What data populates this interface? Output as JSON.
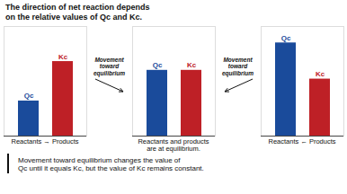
{
  "title": "The direction of net reaction depends\non the relative values of Qc and Kc.",
  "caption": "Movement toward equilibrium changes the value of\nQc until it equals Kc, but the value of Kc remains constant.",
  "chart_data": [
    {
      "type": "bar",
      "categories": [
        "Qc",
        "Kc"
      ],
      "values": [
        0.32,
        0.68
      ],
      "colors": [
        "#1a4b9b",
        "#be2026"
      ],
      "xlabel": "Reactants → Products",
      "ylim": [
        0,
        1.0
      ],
      "tick_labels": false,
      "annotations": [
        "Movement\ntoward\nequilibrium"
      ]
    },
    {
      "type": "bar",
      "categories": [
        "Qc",
        "Kc"
      ],
      "values": [
        0.6,
        0.6
      ],
      "colors": [
        "#1a4b9b",
        "#be2026"
      ],
      "xlabel": "Reactants and products\nare at equilibrium.",
      "ylim": [
        0,
        1.0
      ],
      "tick_labels": false
    },
    {
      "type": "bar",
      "categories": [
        "Qc",
        "Kc"
      ],
      "values": [
        0.85,
        0.52
      ],
      "colors": [
        "#1a4b9b",
        "#be2026"
      ],
      "xlabel": "Reactants ← Products",
      "ylim": [
        0,
        1.0
      ],
      "tick_labels": false,
      "annotations": [
        "Movement\ntoward\nequilibrium"
      ]
    }
  ]
}
